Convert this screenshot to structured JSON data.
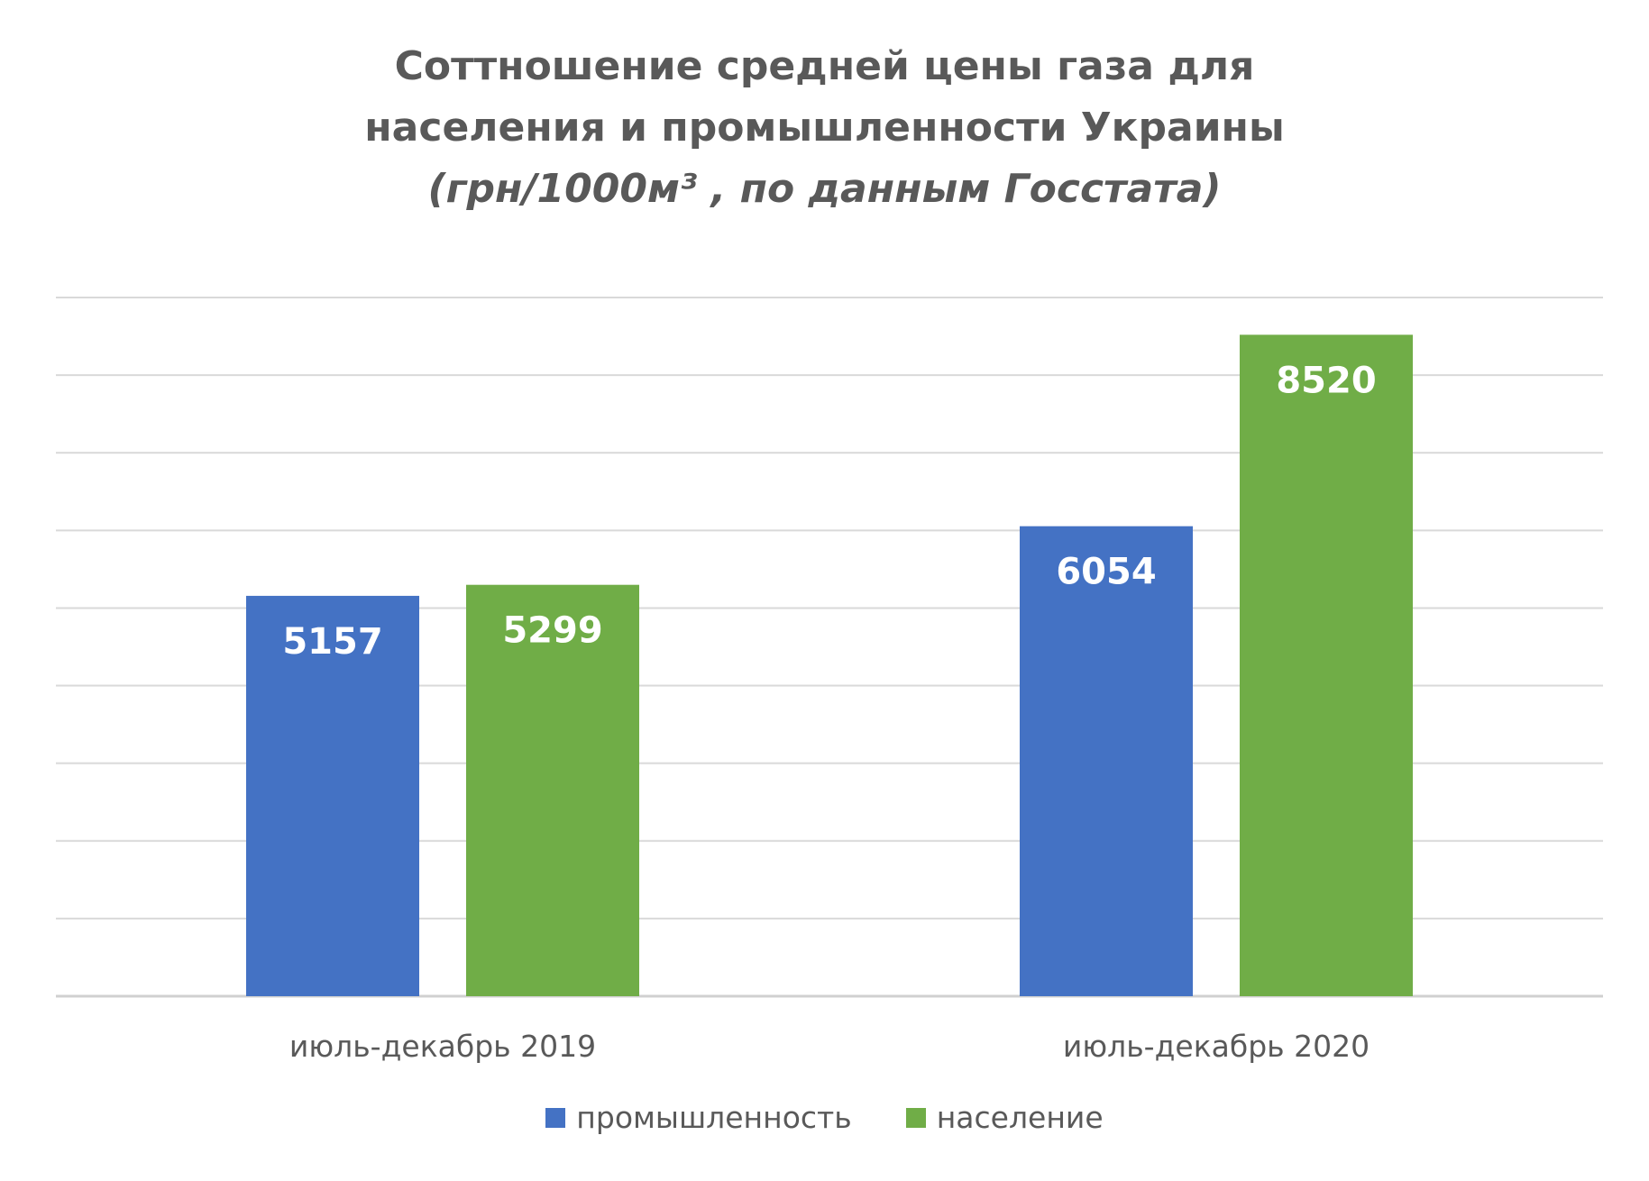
{
  "chart_data": {
    "type": "bar",
    "title_lines": [
      "Соттношение средней цены газа для",
      "населения и промышленности Украины"
    ],
    "subtitle": "(грн/1000м³ , по данным Госстата)",
    "categories": [
      "июль-декабрь 2019",
      "июль-декабрь 2020"
    ],
    "series": [
      {
        "name": "промышленность",
        "color": "#4472C4",
        "values": [
          5157,
          6054
        ]
      },
      {
        "name": "население",
        "color": "#70AD47",
        "values": [
          5299,
          8520
        ]
      }
    ],
    "ylim": [
      0,
      9000
    ],
    "grid": true,
    "data_labels": true,
    "legend_position": "bottom"
  }
}
